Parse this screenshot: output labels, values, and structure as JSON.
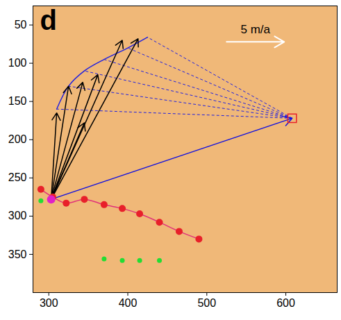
{
  "chart_data": {
    "type": "scatter",
    "panel_label": "d",
    "xlim": [
      280,
      665
    ],
    "xticks": [
      300,
      400,
      500,
      600
    ],
    "ylim": [
      25,
      400
    ],
    "yticks": [
      50,
      100,
      150,
      200,
      250,
      300,
      350
    ],
    "y_reversed": true,
    "red_points": {
      "color": "#e8202a",
      "x": [
        290,
        305,
        322,
        345,
        370,
        393,
        415,
        440,
        465,
        490
      ],
      "y": [
        265,
        275,
        283,
        278,
        285,
        290,
        297,
        308,
        320,
        330
      ]
    },
    "green_points": {
      "color": "#22dd33",
      "x": [
        290,
        370,
        393,
        415,
        440
      ],
      "y": [
        280,
        356,
        358,
        358,
        358
      ]
    },
    "origin_point": {
      "color": "#e020c8",
      "x": 303,
      "y": 278
    },
    "black_arrows": {
      "color": "#000000",
      "x_end": [
        310,
        325,
        343,
        345,
        362,
        393,
        413
      ],
      "y_end": [
        165,
        130,
        125,
        178,
        115,
        70,
        68
      ]
    },
    "arc": {
      "color": "#2020e0",
      "x": [
        310,
        325,
        345,
        370,
        400,
        425
      ],
      "y": [
        160,
        130,
        110,
        95,
        80,
        66
      ]
    },
    "dashed_targets": {
      "color": "#2020e0",
      "x": [
        310,
        325,
        345,
        370,
        400,
        425
      ],
      "y": [
        160,
        130,
        110,
        95,
        80,
        66
      ],
      "line_style": "dashed"
    },
    "blue_arrow": {
      "color": "#1010e0",
      "x_end": 608,
      "y_end": 172
    },
    "red_square": {
      "color": "#e8202a",
      "x": 608,
      "y": 172,
      "marker": "square"
    },
    "scale_arrow": {
      "label": "5 m/a",
      "x1": 525,
      "x2": 598,
      "y": 72
    }
  }
}
